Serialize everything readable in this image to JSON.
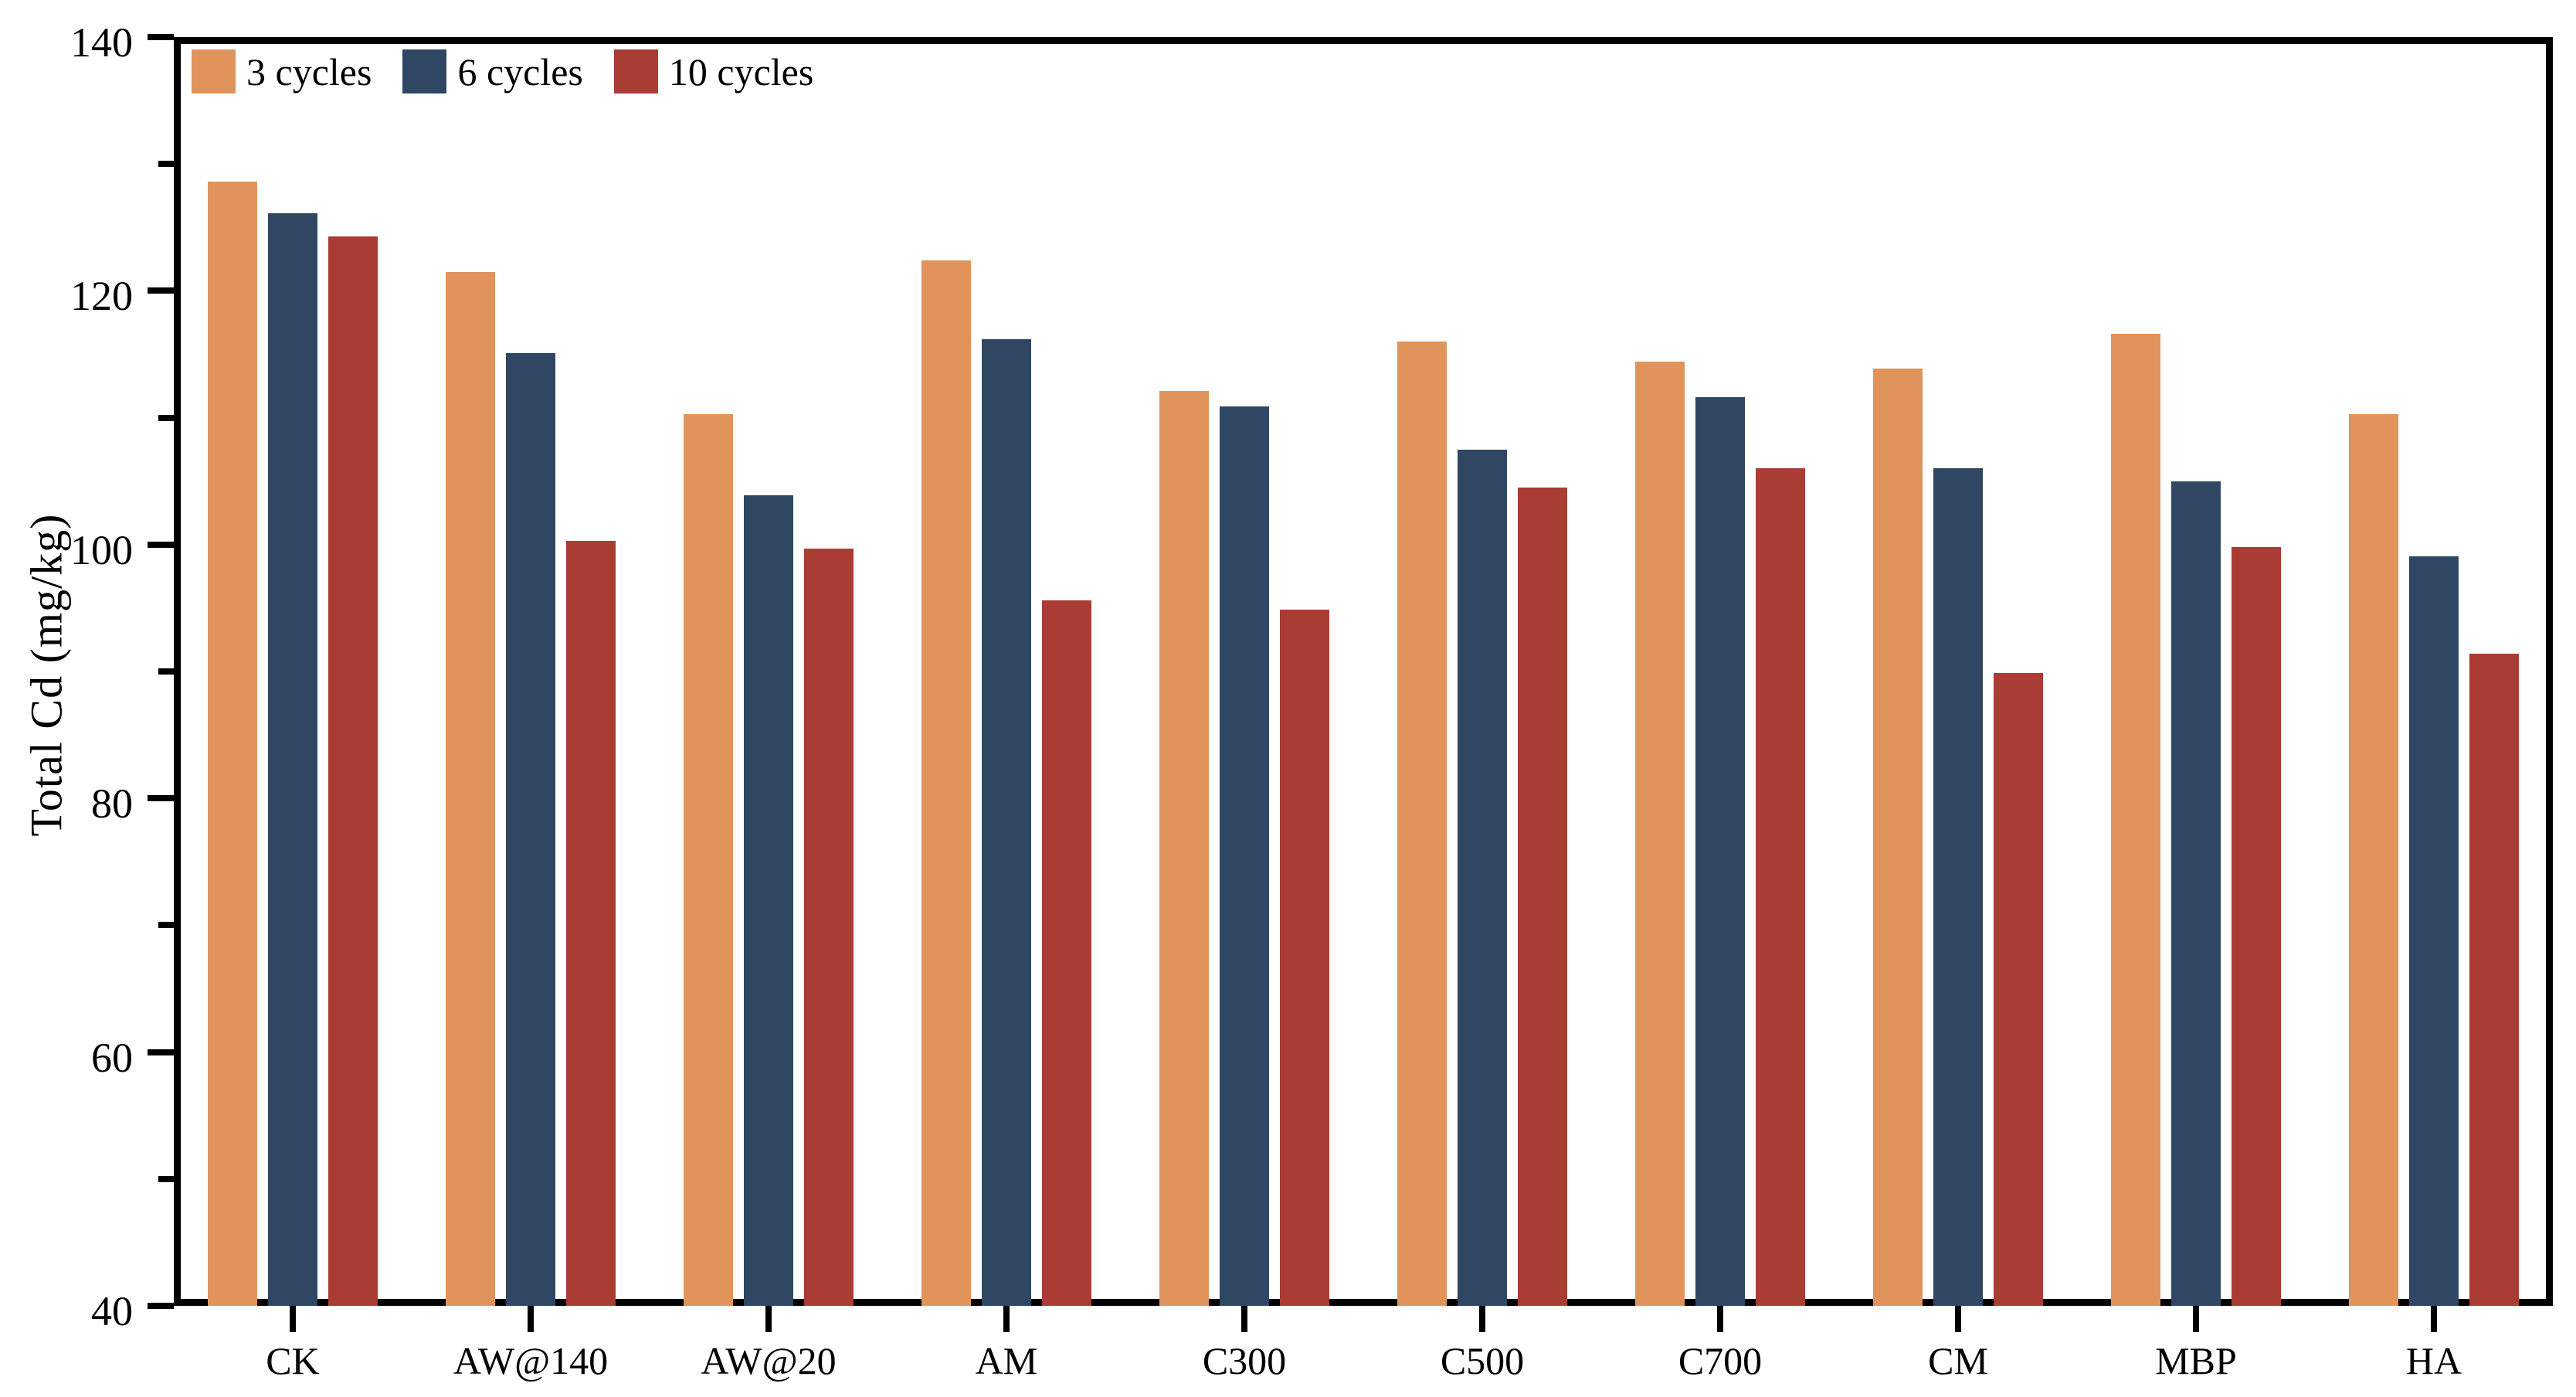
{
  "figure": {
    "background": "#ffffff",
    "frame_color": "#000000"
  },
  "y_axis": {
    "title": "Total Cd (mg/kg)",
    "tick_labels": [
      "40",
      "60",
      "80",
      "100",
      "120",
      "140"
    ]
  },
  "legend": {
    "items": [
      {
        "label": "3 cycles",
        "color": "#E0945B"
      },
      {
        "label": "6 cycles",
        "color": "#2F4763"
      },
      {
        "label": "10 cycles",
        "color": "#A93C33"
      }
    ]
  },
  "chart_data": {
    "type": "bar",
    "title": "",
    "xlabel": "",
    "ylabel": "Total Cd (mg/kg)",
    "ylim": [
      40,
      140
    ],
    "ytick_major": [
      40,
      60,
      80,
      100,
      120,
      140
    ],
    "ytick_minor": [
      50,
      70,
      90,
      110,
      130
    ],
    "grid": false,
    "legend_position": "upper left",
    "categories": [
      "CK",
      "AW@140",
      "AW@20",
      "AM",
      "C300",
      "C500",
      "C700",
      "CM",
      "MBP",
      "HA"
    ],
    "series": [
      {
        "name": "3 cycles",
        "color": "#E0945B",
        "values": [
          128.6,
          121.5,
          110.3,
          122.4,
          112.1,
          116.0,
          114.4,
          113.9,
          116.6,
          110.3
        ]
      },
      {
        "name": "6 cycles",
        "color": "#2F4763",
        "values": [
          126.1,
          115.1,
          103.9,
          116.2,
          110.9,
          107.5,
          111.6,
          106.0,
          105.0,
          99.1
        ]
      },
      {
        "name": "10 cycles",
        "color": "#A93C33",
        "values": [
          124.3,
          100.3,
          99.7,
          95.6,
          94.9,
          104.5,
          106.0,
          89.9,
          99.8,
          91.4
        ]
      }
    ]
  }
}
